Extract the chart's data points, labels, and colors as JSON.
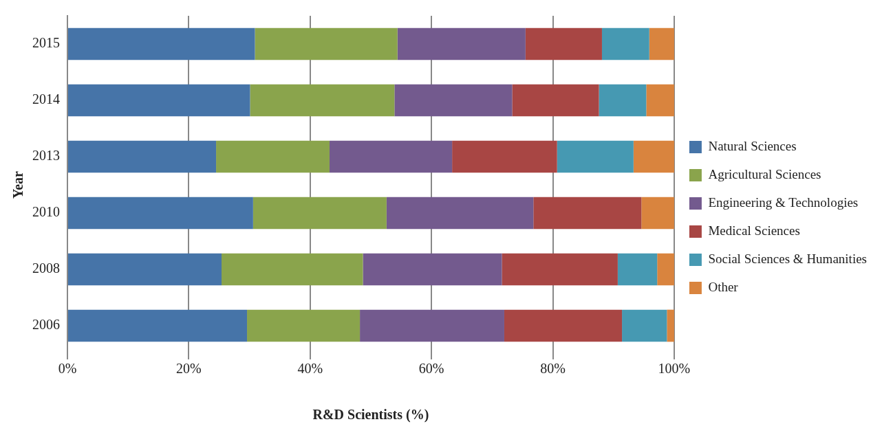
{
  "chart_data": {
    "type": "bar",
    "orientation": "horizontal",
    "stacked": true,
    "categories": [
      "2015",
      "2014",
      "2013",
      "2010",
      "2008",
      "2006"
    ],
    "series": [
      {
        "name": "Natural Sciences",
        "color": "#4674a8",
        "values": [
          30.9,
          30.1,
          24.5,
          30.6,
          25.4,
          29.6
        ]
      },
      {
        "name": "Agricultural Sciences",
        "color": "#8aa44c",
        "values": [
          23.5,
          23.8,
          18.7,
          22.0,
          23.3,
          18.6
        ]
      },
      {
        "name": "Engineering & Technologies",
        "color": "#735a8e",
        "values": [
          21.1,
          19.4,
          20.2,
          24.2,
          22.9,
          23.8
        ]
      },
      {
        "name": "Medical Sciences",
        "color": "#a84644",
        "values": [
          12.6,
          14.3,
          17.3,
          17.8,
          19.1,
          19.4
        ]
      },
      {
        "name": "Social Sciences & Humanities",
        "color": "#4699b2",
        "values": [
          7.8,
          7.8,
          12.6,
          0,
          6.5,
          7.4
        ]
      },
      {
        "name": "Other",
        "color": "#d9843e",
        "values": [
          4.1,
          4.6,
          6.7,
          5.4,
          2.8,
          1.2
        ]
      }
    ],
    "xlim": [
      0,
      100
    ],
    "xticks": [
      {
        "value": 0,
        "label": "0%"
      },
      {
        "value": 20,
        "label": "20%"
      },
      {
        "value": 40,
        "label": "40%"
      },
      {
        "value": 60,
        "label": "60%"
      },
      {
        "value": 80,
        "label": "80%"
      },
      {
        "value": 100,
        "label": "100%"
      }
    ],
    "xlabel": "R&D Scientists (%)",
    "ylabel": "Year",
    "grid": "x",
    "legend": "right"
  }
}
